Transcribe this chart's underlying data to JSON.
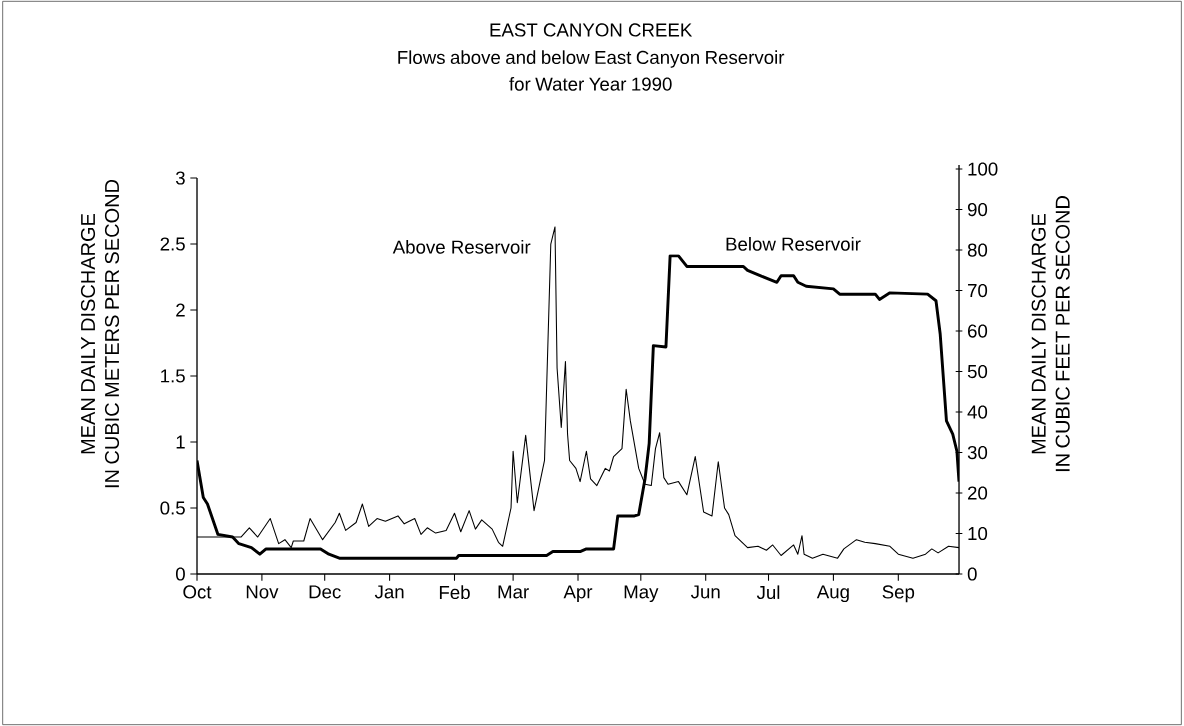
{
  "chart_data": {
    "type": "line",
    "title": "EAST CANYON CREEK",
    "subtitle": "Flows above and below East Canyon Reservoir for Water Year 1990",
    "ylabel": "MEAN DAILY DISCHARGE IN CUBIC METERS PER SECOND",
    "y2label": "MEAN DAILY DISCHARGE IN CUBIC FEET PER SECOND",
    "xlim": [
      "1989-10-01",
      "1990-09-30"
    ],
    "xticks": [
      {
        "value": "1989-10-01",
        "label": "Oct"
      },
      {
        "value": "1989-11-01",
        "label": "Nov"
      },
      {
        "value": "1989-12-01",
        "label": "Dec"
      },
      {
        "value": "1990-01-01",
        "label": "Jan"
      },
      {
        "value": "1990-02-01",
        "label": "Feb"
      },
      {
        "value": "1990-03-01",
        "label": "Mar"
      },
      {
        "value": "1990-04-01",
        "label": "Apr"
      },
      {
        "value": "1990-05-01",
        "label": "May"
      },
      {
        "value": "1990-06-01",
        "label": "Jun"
      },
      {
        "value": "1990-07-01",
        "label": "Jul"
      },
      {
        "value": "1990-08-01",
        "label": "Aug"
      },
      {
        "value": "1990-09-01",
        "label": "Sep"
      }
    ],
    "ylim": [
      0,
      3
    ],
    "yticks": [
      0,
      0.5,
      1,
      1.5,
      2,
      2.5,
      3
    ],
    "y2lim": [
      0,
      101
    ],
    "y2ticks": [
      0,
      10,
      20,
      30,
      40,
      50,
      60,
      70,
      80,
      90,
      100
    ],
    "series": [
      {
        "name": "Above Reservoir",
        "color": "#000000",
        "x": [
          "1989-10-01",
          "1989-10-22",
          "1989-10-26",
          "1989-10-30",
          "1989-11-05",
          "1989-11-09",
          "1989-11-12",
          "1989-11-15",
          "1989-11-16",
          "1989-11-21",
          "1989-11-24",
          "1989-11-30",
          "1989-12-06",
          "1989-12-08",
          "1989-12-11",
          "1989-12-16",
          "1989-12-19",
          "1989-12-22",
          "1989-12-26",
          "1989-12-30",
          "1990-01-05",
          "1990-01-08",
          "1990-01-13",
          "1990-01-16",
          "1990-01-19",
          "1990-01-23",
          "1990-01-28",
          "1990-02-01",
          "1990-02-04",
          "1990-02-08",
          "1990-02-11",
          "1990-02-14",
          "1990-02-19",
          "1990-02-22",
          "1990-02-24",
          "1990-02-28",
          "1990-03-01",
          "1990-03-03",
          "1990-03-07",
          "1990-03-11",
          "1990-03-16",
          "1990-03-19",
          "1990-03-21",
          "1990-03-22",
          "1990-03-24",
          "1990-03-26",
          "1990-03-27",
          "1990-03-28",
          "1990-03-31",
          "1990-04-02",
          "1990-04-05",
          "1990-04-07",
          "1990-04-10",
          "1990-04-14",
          "1990-04-16",
          "1990-04-18",
          "1990-04-22",
          "1990-04-24",
          "1990-04-26",
          "1990-04-30",
          "1990-05-03",
          "1990-05-06",
          "1990-05-08",
          "1990-05-10",
          "1990-05-12",
          "1990-05-14",
          "1990-05-19",
          "1990-05-23",
          "1990-05-27",
          "1990-05-31",
          "1990-06-04",
          "1990-06-07",
          "1990-06-10",
          "1990-06-12",
          "1990-06-15",
          "1990-06-21",
          "1990-06-26",
          "1990-06-30",
          "1990-07-03",
          "1990-07-07",
          "1990-07-13",
          "1990-07-15",
          "1990-07-17",
          "1990-07-18",
          "1990-07-22",
          "1990-07-27",
          "1990-08-03",
          "1990-08-06",
          "1990-08-12",
          "1990-08-16",
          "1990-08-21",
          "1990-08-28",
          "1990-09-01",
          "1990-09-08",
          "1990-09-14",
          "1990-09-17",
          "1990-09-20",
          "1990-09-25",
          "1990-09-30"
        ],
        "values": [
          0.28,
          0.28,
          0.35,
          0.28,
          0.42,
          0.23,
          0.26,
          0.2,
          0.25,
          0.25,
          0.42,
          0.26,
          0.39,
          0.46,
          0.33,
          0.39,
          0.53,
          0.36,
          0.42,
          0.4,
          0.44,
          0.38,
          0.42,
          0.3,
          0.35,
          0.31,
          0.33,
          0.46,
          0.32,
          0.48,
          0.34,
          0.41,
          0.34,
          0.24,
          0.21,
          0.5,
          0.93,
          0.54,
          1.05,
          0.48,
          0.86,
          2.5,
          2.63,
          1.56,
          1.11,
          1.61,
          1.06,
          0.86,
          0.8,
          0.7,
          0.93,
          0.72,
          0.67,
          0.8,
          0.78,
          0.89,
          0.95,
          1.4,
          1.16,
          0.8,
          0.68,
          0.67,
          0.95,
          1.07,
          0.73,
          0.68,
          0.7,
          0.6,
          0.89,
          0.47,
          0.44,
          0.85,
          0.5,
          0.45,
          0.29,
          0.2,
          0.21,
          0.18,
          0.22,
          0.14,
          0.22,
          0.15,
          0.29,
          0.15,
          0.12,
          0.15,
          0.12,
          0.19,
          0.26,
          0.24,
          0.23,
          0.21,
          0.15,
          0.12,
          0.15,
          0.19,
          0.16,
          0.21,
          0.2
        ]
      },
      {
        "name": "Below Reservoir",
        "color": "#000000",
        "x": [
          "1989-10-01",
          "1989-10-04",
          "1989-10-06",
          "1989-10-11",
          "1989-10-18",
          "1989-10-21",
          "1989-10-27",
          "1989-10-31",
          "1989-11-03",
          "1989-11-29",
          "1989-12-03",
          "1989-12-08",
          "1990-01-21",
          "1990-02-02",
          "1990-02-03",
          "1990-03-17",
          "1990-03-20",
          "1990-04-02",
          "1990-04-05",
          "1990-04-18",
          "1990-04-20",
          "1990-04-28",
          "1990-04-30",
          "1990-05-03",
          "1990-05-05",
          "1990-05-07",
          "1990-05-13",
          "1990-05-15",
          "1990-05-19",
          "1990-05-23",
          "1990-06-19",
          "1990-06-21",
          "1990-06-27",
          "1990-07-05",
          "1990-07-07",
          "1990-07-13",
          "1990-07-15",
          "1990-07-19",
          "1990-08-01",
          "1990-08-04",
          "1990-08-21",
          "1990-08-23",
          "1990-08-28",
          "1990-09-15",
          "1990-09-19",
          "1990-09-21",
          "1990-09-24",
          "1990-09-27",
          "1990-09-29",
          "1990-09-30"
        ],
        "values": [
          0.86,
          0.58,
          0.53,
          0.3,
          0.28,
          0.23,
          0.2,
          0.15,
          0.19,
          0.19,
          0.15,
          0.12,
          0.12,
          0.12,
          0.14,
          0.14,
          0.17,
          0.17,
          0.19,
          0.19,
          0.44,
          0.44,
          0.45,
          0.72,
          0.99,
          1.73,
          1.72,
          2.41,
          2.41,
          2.33,
          2.33,
          2.3,
          2.26,
          2.21,
          2.26,
          2.26,
          2.21,
          2.18,
          2.16,
          2.12,
          2.12,
          2.08,
          2.13,
          2.12,
          2.07,
          1.82,
          1.16,
          1.06,
          0.93,
          0.7
        ]
      }
    ]
  }
}
